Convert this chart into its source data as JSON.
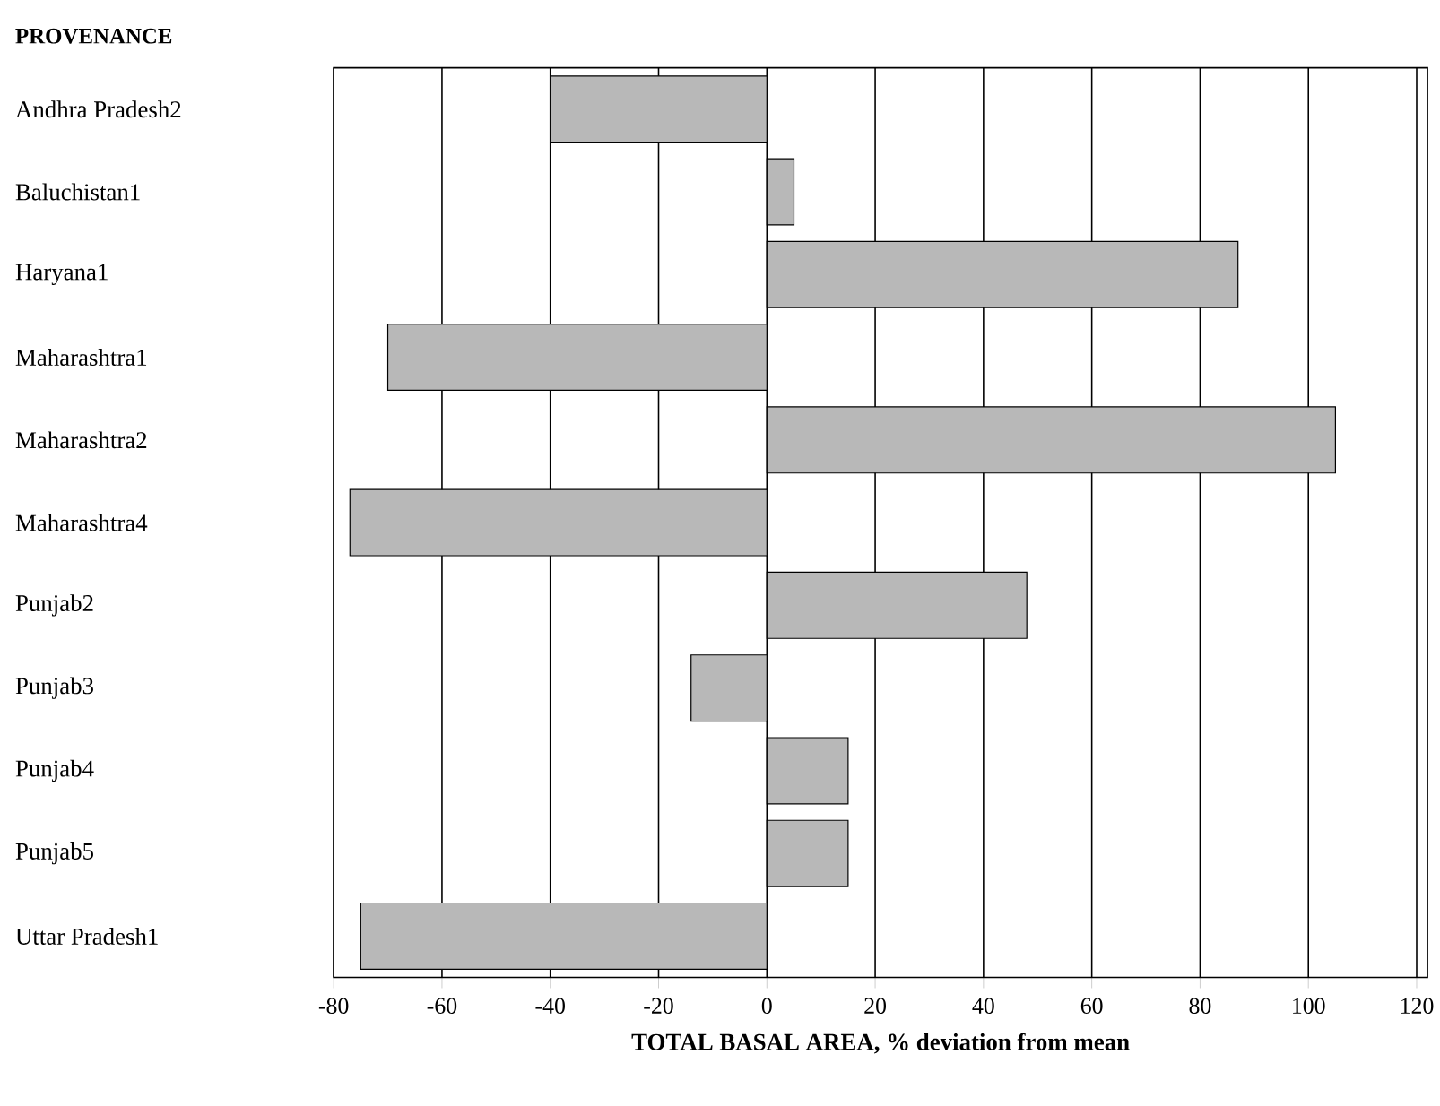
{
  "chart_data": {
    "type": "bar",
    "orientation": "horizontal",
    "ylabel": "PROVENANCE",
    "xlabel": "TOTAL BASAL AREA, % deviation from mean",
    "categories": [
      "Andhra Pradesh2",
      "Baluchistan1",
      "Haryana1",
      "Maharashtra1",
      "Maharashtra2",
      "Maharashtra4",
      "Punjab2",
      "Punjab3",
      "Punjab4",
      "Punjab5",
      "Uttar Pradesh1"
    ],
    "values": [
      -40,
      5,
      87,
      -70,
      105,
      -77,
      48,
      -14,
      15,
      15,
      -75
    ],
    "color": "#b8b8b8",
    "xlim": [
      -80,
      122
    ],
    "xticks": [
      -80,
      -60,
      -40,
      -20,
      0,
      20,
      40,
      60,
      80,
      100,
      120
    ],
    "grid": "x"
  }
}
